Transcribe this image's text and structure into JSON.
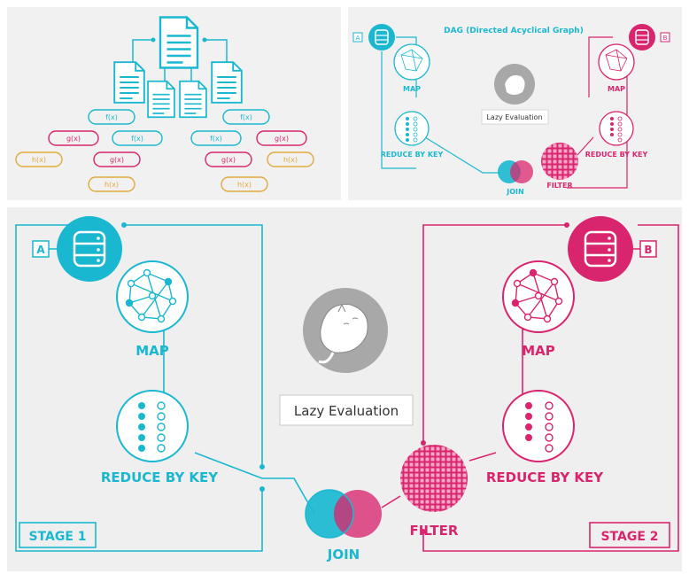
{
  "colors": {
    "cyan": "#1ab8d0",
    "cyan_light": "#7fd6e3",
    "magenta": "#d9256e",
    "magenta_light": "#ef8fb6",
    "gold": "#e2aa3c",
    "panel_bg": "#efefef",
    "grey": "#a8a8a8"
  },
  "top_left": {
    "functions": {
      "f": "f(x)",
      "g": "g(x)",
      "h": "h(x)"
    }
  },
  "top_right": {
    "title": "DAG (Directed Acyclical Graph)",
    "source_a": "A",
    "source_b": "B",
    "map_left": "MAP",
    "map_right": "MAP",
    "reduce_left": "REDUCE BY KEY",
    "reduce_right": "REDUCE BY KEY",
    "lazy": "Lazy Evaluation",
    "join": "JOIN",
    "filter": "FILTER"
  },
  "bottom": {
    "source_a": "A",
    "source_b": "B",
    "map_left": "MAP",
    "map_right": "MAP",
    "reduce_left": "REDUCE BY KEY",
    "reduce_right": "REDUCE BY KEY",
    "lazy": "Lazy Evaluation",
    "join": "JOIN",
    "filter": "FILTER",
    "stage1": "STAGE 1",
    "stage2": "STAGE 2"
  }
}
